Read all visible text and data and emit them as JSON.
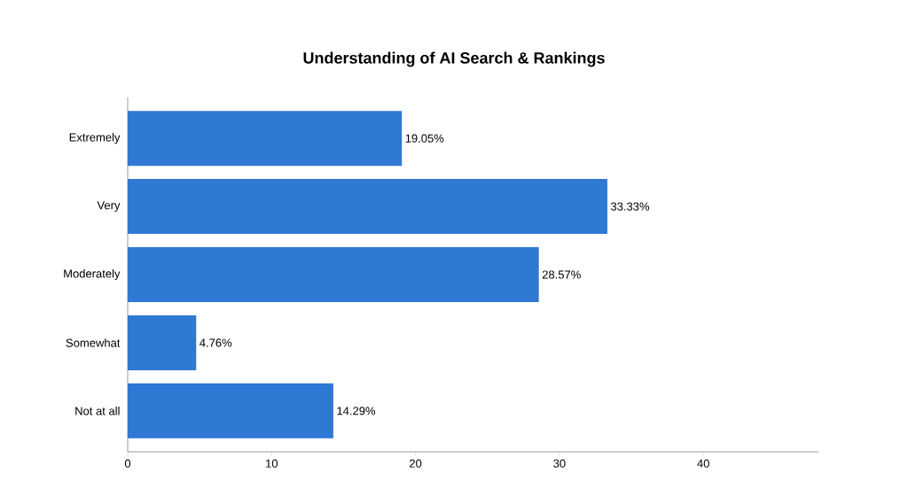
{
  "chart_data": {
    "type": "bar",
    "orientation": "horizontal",
    "title": "Understanding of AI Search & Rankings",
    "categories": [
      "Extremely",
      "Very",
      "Moderately",
      "Somewhat",
      "Not at all"
    ],
    "values": [
      19.05,
      33.33,
      28.57,
      4.76,
      14.29
    ],
    "value_labels": [
      "19.05%",
      "33.33%",
      "28.57%",
      "4.76%",
      "14.29%"
    ],
    "color": "#2f78d4",
    "xlim": [
      0,
      48
    ],
    "xticks": [
      0,
      10,
      20,
      30,
      40
    ]
  }
}
